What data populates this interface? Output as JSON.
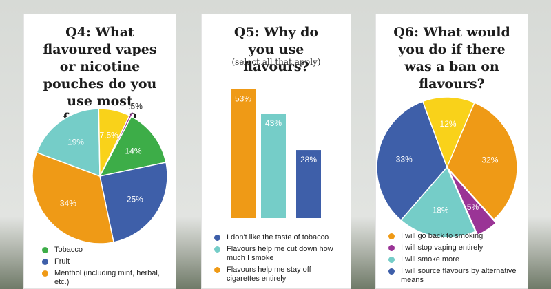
{
  "colors": {
    "orange": "#ef9a16",
    "teal": "#75cdc8",
    "blue": "#3e5fa9",
    "green": "#3dad48",
    "yellow": "#f9d21a",
    "purple": "#9a3496"
  },
  "chart_data": [
    {
      "type": "pie",
      "title": "Q4: What flavoured vapes or nicotine pouches do you use most frequetly?",
      "slices": [
        {
          "label": "",
          "value": 0.5,
          "display": ".5%",
          "color": "#9a3496"
        },
        {
          "label": "Tobacco",
          "value": 14,
          "display": "14%",
          "color": "#3dad48"
        },
        {
          "label": "Fruit",
          "value": 25,
          "display": "25%",
          "color": "#3e5fa9"
        },
        {
          "label": "Menthol (including mint, herbal, etc.)",
          "value": 34,
          "display": "34%",
          "color": "#ef9a16"
        },
        {
          "label": "",
          "value": 19,
          "display": "19%",
          "color": "#75cdc8"
        },
        {
          "label": "",
          "value": 7.5,
          "display": "7.5%",
          "color": "#f9d21a"
        }
      ],
      "legend": [
        {
          "label": "Tobacco",
          "color": "#3dad48"
        },
        {
          "label": "Fruit",
          "color": "#3e5fa9"
        },
        {
          "label": "Menthol (including mint, herbal, etc.)",
          "color": "#ef9a16"
        }
      ]
    },
    {
      "type": "bar",
      "title": "Q5: Why do you use flavours?",
      "subtitle": "(select all that apply)",
      "categories": [
        "Flavours help me stay off cigarettes entirely",
        "Flavours help me cut down how much I smoke",
        "I don't like the taste of tobacco"
      ],
      "values": [
        53,
        43,
        28
      ],
      "labels": [
        "53%",
        "43%",
        "28%"
      ],
      "bar_colors": [
        "#ef9a16",
        "#75cdc8",
        "#3e5fa9"
      ],
      "ylim": [
        0,
        60
      ],
      "legend": [
        {
          "label": "I don't like the taste of tobacco",
          "color": "#3e5fa9"
        },
        {
          "label": "Flavours help me cut down how much I smoke",
          "color": "#75cdc8"
        },
        {
          "label": "Flavours help me stay off cigarettes entirely",
          "color": "#ef9a16"
        }
      ]
    },
    {
      "type": "pie",
      "title": "Q6: What would you do if there was a ban on flavours?",
      "slices": [
        {
          "label": "I will go back to smoking",
          "value": 32,
          "display": "32%",
          "color": "#ef9a16"
        },
        {
          "label": "I will stop vaping entirely",
          "value": 5,
          "display": "5%",
          "color": "#9a3496"
        },
        {
          "label": "I will smoke more",
          "value": 18,
          "display": "18%",
          "color": "#75cdc8"
        },
        {
          "label": "I will source flavours by alternative means",
          "value": 33,
          "display": "33%",
          "color": "#3e5fa9"
        },
        {
          "label": "",
          "value": 12,
          "display": "12%",
          "color": "#f9d21a"
        }
      ],
      "legend": [
        {
          "label": "I will go back to smoking",
          "color": "#ef9a16"
        },
        {
          "label": "I will stop vaping entirely",
          "color": "#9a3496"
        },
        {
          "label": "I will smoke more",
          "color": "#75cdc8"
        },
        {
          "label": "I will source flavours by alternative means",
          "color": "#3e5fa9"
        }
      ]
    }
  ]
}
